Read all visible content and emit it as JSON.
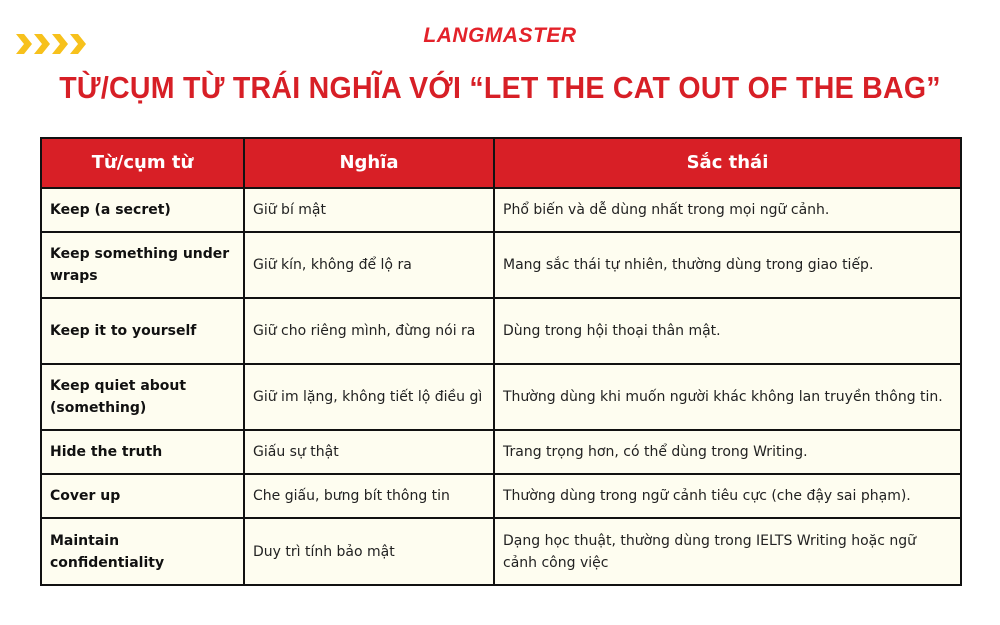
{
  "brand": {
    "logo_text": "LANGMASTER",
    "decoration": "yellow-chevrons-icon",
    "accent": "#d81f26",
    "chevron_color": "#f7c11c"
  },
  "title": "TỪ/CỤM TỪ TRÁI NGHĨA VỚI “LET THE CAT OUT OF THE BAG”",
  "table": {
    "headers": [
      "Từ/cụm từ",
      "Nghĩa",
      "Sắc thái"
    ],
    "rows": [
      [
        "Keep (a secret)",
        "Giữ bí mật",
        "Phổ biến và dễ dùng nhất trong mọi ngữ cảnh."
      ],
      [
        "Keep something under wraps",
        "Giữ kín, không để lộ ra",
        "Mang sắc thái tự nhiên, thường dùng trong giao tiếp."
      ],
      [
        "Keep it to yourself",
        "Giữ cho riêng mình, đừng nói ra",
        "Dùng trong hội thoại thân mật."
      ],
      [
        "Keep quiet about (something)",
        "Giữ im lặng, không tiết lộ điều gì",
        "Thường dùng khi muốn người khác không lan truyền thông tin."
      ],
      [
        "Hide the truth",
        "Giấu sự thật",
        "Trang trọng hơn, có thể dùng trong Writing."
      ],
      [
        "Cover up",
        "Che giấu, bưng bít thông tin",
        "Thường dùng trong ngữ cảnh tiêu cực (che đậy sai phạm)."
      ],
      [
        "Maintain confidentiality",
        "Duy trì tính bảo mật",
        "Dạng học thuật, thường dùng trong IELTS Writing hoặc ngữ cảnh công việc"
      ]
    ]
  }
}
